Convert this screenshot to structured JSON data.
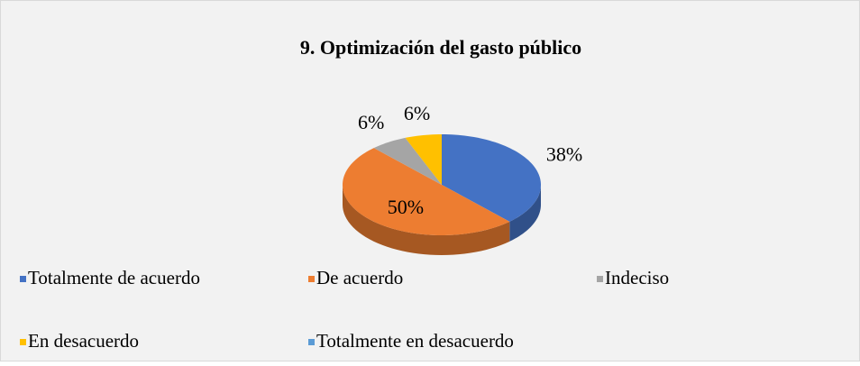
{
  "chart_data": {
    "type": "pie3d",
    "title": "9. Optimización del gasto público",
    "categories": [
      "Totalmente de acuerdo",
      "De acuerdo",
      "Indeciso",
      "En desacuerdo",
      "Totalmente en desacuerdo"
    ],
    "values": [
      38,
      50,
      6,
      6,
      0
    ],
    "value_labels": [
      "38%",
      "50%",
      "6%",
      "6%",
      null
    ],
    "colors": [
      "#4472c4",
      "#ed7d31",
      "#a5a5a5",
      "#ffc000",
      "#5b9bd5"
    ],
    "legend": "bottom"
  }
}
